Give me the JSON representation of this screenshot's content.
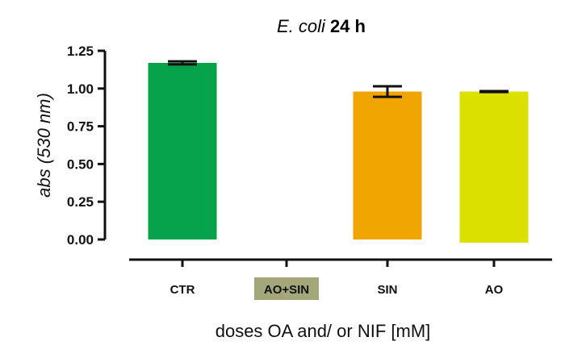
{
  "chart_data": {
    "type": "bar",
    "title_italic": "E. coli",
    "title_bold": "24 h",
    "xlabel": "doses OA and/ or NIF [mM]",
    "ylabel": "abs (530 nm)",
    "ylim": [
      0,
      1.25
    ],
    "yticks": [
      "0.00",
      "0.25",
      "0.50",
      "0.75",
      "1.00",
      "1.25"
    ],
    "categories": [
      "CTR",
      "AO+SIN",
      "SIN",
      "AO"
    ],
    "values": [
      1.17,
      null,
      0.98,
      0.98
    ],
    "errors": [
      0.01,
      null,
      0.035,
      0.003
    ],
    "colors": [
      "#05a24a",
      null,
      "#f0a400",
      "#dce000"
    ],
    "highlight_category": "AO+SIN",
    "highlight_color": "#a3a77a",
    "grid": false,
    "legend": "none"
  }
}
